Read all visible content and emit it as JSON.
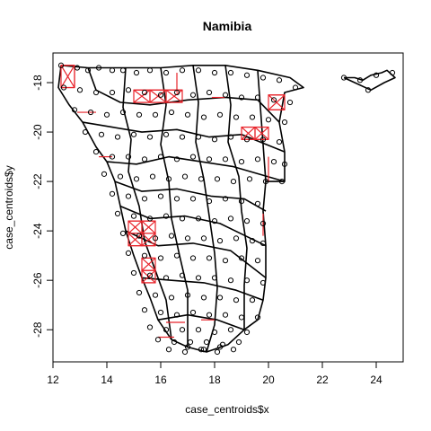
{
  "chart_data": {
    "type": "scatter",
    "title": "Namibia",
    "xlabel": "case_centroids$x",
    "ylabel": "case_centroids$y",
    "xlim": [
      12.0,
      25.0
    ],
    "ylim": [
      -29.3,
      -16.8
    ],
    "xticks": [
      12,
      14,
      16,
      18,
      20,
      22,
      24
    ],
    "yticks": [
      -28,
      -26,
      -24,
      -22,
      -20,
      -18
    ],
    "xtick_labels": [
      "12",
      "14",
      "16",
      "18",
      "20",
      "22",
      "24"
    ],
    "ytick_labels": [
      "-28",
      "-26",
      "-24",
      "-22",
      "-20",
      "-18"
    ],
    "grid": false,
    "colors": {
      "boundaries": "#000000",
      "points": "#000000",
      "highlight_links": "#e8232a"
    },
    "boundaries": [
      [
        [
          12.3,
          -17.3
        ],
        [
          13.3,
          -17.4
        ],
        [
          14.7,
          -17.4
        ],
        [
          16.0,
          -17.4
        ],
        [
          17.2,
          -17.3
        ],
        [
          18.4,
          -17.3
        ],
        [
          19.6,
          -17.5
        ],
        [
          20.8,
          -17.8
        ],
        [
          21.3,
          -18.2
        ],
        [
          20.6,
          -18.4
        ],
        [
          20.4,
          -19.6
        ],
        [
          20.6,
          -20.8
        ],
        [
          20.6,
          -22.0
        ],
        [
          19.9,
          -22.0
        ],
        [
          19.8,
          -23.2
        ],
        [
          19.9,
          -24.6
        ],
        [
          19.9,
          -25.9
        ],
        [
          19.8,
          -26.8
        ],
        [
          19.6,
          -27.6
        ],
        [
          19.1,
          -28.0
        ],
        [
          18.5,
          -28.6
        ],
        [
          17.7,
          -28.9
        ],
        [
          17.0,
          -28.7
        ],
        [
          16.4,
          -28.4
        ],
        [
          15.9,
          -27.6
        ],
        [
          15.6,
          -26.7
        ],
        [
          15.3,
          -25.9
        ],
        [
          15.0,
          -25.0
        ],
        [
          14.7,
          -24.0
        ],
        [
          14.5,
          -23.0
        ],
        [
          14.3,
          -22.0
        ],
        [
          14.0,
          -21.2
        ],
        [
          13.6,
          -20.6
        ],
        [
          13.1,
          -19.6
        ],
        [
          12.6,
          -18.9
        ],
        [
          12.2,
          -18.2
        ],
        [
          12.3,
          -17.3
        ]
      ],
      [
        [
          22.8,
          -17.8
        ],
        [
          23.2,
          -17.8
        ],
        [
          23.5,
          -17.9
        ],
        [
          23.8,
          -17.7
        ],
        [
          24.2,
          -17.6
        ],
        [
          24.4,
          -17.5
        ],
        [
          24.7,
          -17.8
        ],
        [
          24.3,
          -18.0
        ],
        [
          23.8,
          -18.3
        ],
        [
          23.2,
          -18.0
        ],
        [
          22.8,
          -17.8
        ]
      ],
      [
        [
          13.3,
          -17.4
        ],
        [
          13.6,
          -18.3
        ],
        [
          14.5,
          -18.8
        ],
        [
          15.6,
          -18.9
        ],
        [
          17.0,
          -18.7
        ],
        [
          18.4,
          -18.6
        ],
        [
          19.6,
          -18.7
        ],
        [
          20.4,
          -19.6
        ]
      ],
      [
        [
          13.1,
          -19.6
        ],
        [
          14.2,
          -19.8
        ],
        [
          15.3,
          -20.0
        ],
        [
          16.6,
          -19.9
        ],
        [
          17.8,
          -20.2
        ],
        [
          19.0,
          -20.1
        ],
        [
          20.6,
          -20.8
        ]
      ],
      [
        [
          14.0,
          -21.2
        ],
        [
          15.1,
          -21.3
        ],
        [
          16.3,
          -21.0
        ],
        [
          17.5,
          -21.2
        ],
        [
          18.7,
          -21.4
        ],
        [
          20.6,
          -22.0
        ]
      ],
      [
        [
          14.3,
          -22.0
        ],
        [
          15.3,
          -22.4
        ],
        [
          16.6,
          -22.3
        ],
        [
          17.9,
          -22.6
        ],
        [
          19.1,
          -22.7
        ],
        [
          19.9,
          -23.2
        ]
      ],
      [
        [
          14.5,
          -23.0
        ],
        [
          15.6,
          -23.5
        ],
        [
          16.9,
          -23.4
        ],
        [
          18.2,
          -23.7
        ],
        [
          19.9,
          -24.6
        ]
      ],
      [
        [
          14.7,
          -24.0
        ],
        [
          15.9,
          -24.6
        ],
        [
          17.2,
          -24.5
        ],
        [
          18.6,
          -24.8
        ],
        [
          19.9,
          -25.9
        ]
      ],
      [
        [
          15.3,
          -25.9
        ],
        [
          16.4,
          -26.0
        ],
        [
          17.6,
          -26.1
        ],
        [
          18.8,
          -26.4
        ],
        [
          19.8,
          -26.8
        ]
      ],
      [
        [
          15.9,
          -27.6
        ],
        [
          17.0,
          -27.4
        ],
        [
          18.1,
          -27.6
        ],
        [
          19.1,
          -28.0
        ]
      ],
      [
        [
          14.7,
          -17.4
        ],
        [
          14.6,
          -19.0
        ],
        [
          14.9,
          -20.3
        ],
        [
          14.8,
          -21.6
        ],
        [
          15.2,
          -23.0
        ],
        [
          15.4,
          -24.4
        ],
        [
          15.8,
          -25.6
        ],
        [
          16.2,
          -26.8
        ],
        [
          16.4,
          -28.4
        ]
      ],
      [
        [
          16.0,
          -17.4
        ],
        [
          16.2,
          -18.9
        ],
        [
          16.0,
          -20.5
        ],
        [
          16.3,
          -22.0
        ],
        [
          16.4,
          -23.5
        ],
        [
          16.7,
          -25.0
        ],
        [
          17.0,
          -26.4
        ],
        [
          17.0,
          -28.7
        ]
      ],
      [
        [
          17.2,
          -17.3
        ],
        [
          17.4,
          -18.8
        ],
        [
          17.3,
          -20.4
        ],
        [
          17.6,
          -21.9
        ],
        [
          17.8,
          -23.4
        ],
        [
          18.0,
          -24.9
        ],
        [
          18.1,
          -26.3
        ],
        [
          18.0,
          -27.8
        ],
        [
          17.7,
          -28.9
        ]
      ],
      [
        [
          18.4,
          -17.3
        ],
        [
          18.6,
          -18.9
        ],
        [
          18.5,
          -20.4
        ],
        [
          18.9,
          -21.8
        ],
        [
          19.0,
          -23.2
        ],
        [
          19.2,
          -24.7
        ],
        [
          19.1,
          -26.2
        ],
        [
          19.1,
          -28.0
        ]
      ],
      [
        [
          19.6,
          -17.5
        ],
        [
          19.7,
          -19.0
        ],
        [
          19.8,
          -20.5
        ],
        [
          19.9,
          -22.0
        ]
      ]
    ],
    "points_x": [
      12.3,
      12.9,
      13.3,
      13.7,
      14.2,
      14.6,
      15.1,
      15.6,
      16.2,
      16.8,
      17.4,
      18.0,
      18.6,
      19.2,
      19.8,
      20.4,
      21.0,
      12.4,
      13.0,
      13.6,
      14.2,
      14.8,
      15.4,
      16.0,
      16.6,
      17.2,
      17.8,
      18.4,
      19.0,
      19.6,
      20.2,
      20.8,
      12.8,
      13.4,
      14.0,
      14.6,
      15.2,
      15.8,
      16.4,
      17.0,
      17.6,
      18.2,
      18.8,
      19.4,
      20.0,
      20.6,
      13.2,
      13.8,
      14.4,
      15.0,
      15.6,
      16.2,
      16.8,
      17.4,
      18.0,
      18.6,
      19.2,
      19.8,
      20.4,
      13.6,
      14.2,
      14.8,
      15.4,
      16.0,
      16.6,
      17.2,
      17.8,
      18.4,
      19.0,
      19.6,
      20.2,
      20.6,
      13.9,
      14.5,
      15.1,
      15.7,
      16.3,
      16.9,
      17.5,
      18.1,
      18.7,
      19.3,
      19.9,
      20.5,
      14.2,
      14.8,
      15.4,
      16.0,
      16.6,
      17.2,
      17.8,
      18.4,
      19.0,
      19.6,
      14.4,
      15.0,
      15.6,
      16.2,
      16.8,
      17.4,
      18.0,
      18.6,
      19.2,
      19.8,
      14.6,
      15.2,
      15.8,
      16.4,
      17.0,
      17.6,
      18.2,
      18.8,
      19.4,
      19.8,
      14.8,
      15.4,
      16.0,
      16.6,
      17.2,
      17.8,
      18.4,
      19.0,
      19.6,
      15.0,
      15.6,
      16.2,
      16.8,
      17.4,
      18.0,
      18.6,
      19.2,
      19.8,
      15.2,
      15.8,
      16.4,
      17.0,
      17.6,
      18.2,
      18.8,
      19.4,
      15.4,
      16.0,
      16.6,
      17.2,
      17.8,
      18.4,
      19.0,
      19.6,
      15.6,
      16.2,
      16.8,
      17.4,
      18.0,
      18.6,
      19.2,
      15.9,
      16.5,
      17.1,
      17.7,
      18.3,
      18.9,
      16.3,
      16.9,
      17.5,
      18.1,
      18.7,
      17.0,
      17.6,
      18.2,
      22.8,
      23.4,
      24.0,
      24.6,
      23.7
    ],
    "points_y": [
      -17.3,
      -17.4,
      -17.5,
      -17.4,
      -17.5,
      -17.5,
      -17.6,
      -17.5,
      -17.6,
      -17.5,
      -17.5,
      -17.6,
      -17.6,
      -17.7,
      -17.8,
      -17.9,
      -18.2,
      -18.2,
      -18.3,
      -18.4,
      -18.4,
      -18.3,
      -18.4,
      -18.5,
      -18.4,
      -18.5,
      -18.4,
      -18.5,
      -18.6,
      -18.6,
      -18.7,
      -18.8,
      -19.1,
      -19.2,
      -19.3,
      -19.2,
      -19.3,
      -19.3,
      -19.2,
      -19.3,
      -19.4,
      -19.3,
      -19.4,
      -19.4,
      -19.5,
      -19.6,
      -20.0,
      -20.1,
      -20.2,
      -20.1,
      -20.2,
      -20.1,
      -20.2,
      -20.2,
      -20.3,
      -20.2,
      -20.3,
      -20.3,
      -20.4,
      -20.8,
      -21.0,
      -21.0,
      -21.1,
      -21.0,
      -21.1,
      -21.0,
      -21.1,
      -21.1,
      -21.2,
      -21.1,
      -21.2,
      -21.3,
      -21.7,
      -21.8,
      -21.9,
      -21.8,
      -21.9,
      -21.8,
      -21.9,
      -21.9,
      -22.0,
      -21.9,
      -22.0,
      -22.0,
      -22.5,
      -22.6,
      -22.7,
      -22.6,
      -22.7,
      -22.7,
      -22.8,
      -22.7,
      -22.8,
      -22.9,
      -23.3,
      -23.4,
      -23.5,
      -23.4,
      -23.5,
      -23.5,
      -23.6,
      -23.5,
      -23.6,
      -23.7,
      -24.1,
      -24.2,
      -24.3,
      -24.2,
      -24.3,
      -24.3,
      -24.4,
      -24.3,
      -24.4,
      -24.5,
      -24.9,
      -25.0,
      -25.1,
      -25.0,
      -25.1,
      -25.1,
      -25.2,
      -25.1,
      -25.2,
      -25.7,
      -25.8,
      -25.9,
      -25.8,
      -25.9,
      -25.9,
      -26.0,
      -26.0,
      -26.1,
      -26.5,
      -26.6,
      -26.7,
      -26.6,
      -26.7,
      -26.7,
      -26.8,
      -26.8,
      -27.2,
      -27.3,
      -27.4,
      -27.3,
      -27.4,
      -27.4,
      -27.5,
      -27.5,
      -27.9,
      -28.0,
      -28.0,
      -28.0,
      -28.1,
      -28.0,
      -28.1,
      -28.4,
      -28.5,
      -28.5,
      -28.5,
      -28.6,
      -28.5,
      -28.8,
      -28.9,
      -28.8,
      -28.9,
      -28.8,
      -28.7,
      -28.8,
      -28.7,
      -17.8,
      -17.9,
      -17.7,
      -17.6,
      -18.3
    ],
    "highlight_cells": [
      [
        12.3,
        -17.3,
        0.5,
        0.9
      ],
      [
        15.0,
        -18.3,
        0.6,
        0.5
      ],
      [
        15.6,
        -18.3,
        0.6,
        0.5
      ],
      [
        16.2,
        -18.3,
        0.6,
        0.5
      ],
      [
        19.0,
        -19.8,
        0.5,
        0.5
      ],
      [
        19.5,
        -19.8,
        0.5,
        0.5
      ],
      [
        20.0,
        -18.5,
        0.6,
        0.6
      ],
      [
        14.8,
        -23.6,
        0.5,
        0.5
      ],
      [
        14.8,
        -24.1,
        0.5,
        0.5
      ],
      [
        15.3,
        -23.6,
        0.5,
        0.5
      ],
      [
        15.3,
        -24.1,
        0.5,
        0.5
      ],
      [
        15.3,
        -25.1,
        0.5,
        0.5
      ],
      [
        15.3,
        -25.6,
        0.5,
        0.5
      ]
    ],
    "highlight_links": [
      [
        12.3,
        -17.3,
        12.8,
        -17.3
      ],
      [
        12.8,
        -17.3,
        12.8,
        -18.2
      ],
      [
        12.3,
        -18.2,
        12.8,
        -18.2
      ],
      [
        15.0,
        -18.3,
        16.8,
        -18.3
      ],
      [
        15.0,
        -18.8,
        16.8,
        -18.8
      ],
      [
        19.0,
        -19.8,
        20.0,
        -19.8
      ],
      [
        19.0,
        -20.3,
        20.0,
        -20.3
      ],
      [
        20.0,
        -18.5,
        20.6,
        -18.5
      ],
      [
        20.0,
        -19.1,
        20.6,
        -19.1
      ],
      [
        14.8,
        -23.6,
        15.8,
        -23.6
      ],
      [
        14.8,
        -24.6,
        15.8,
        -24.6
      ],
      [
        15.3,
        -25.1,
        15.8,
        -25.1
      ],
      [
        15.3,
        -26.1,
        15.8,
        -26.1
      ],
      [
        16.2,
        -27.7,
        16.9,
        -27.7
      ],
      [
        15.9,
        -28.3,
        16.5,
        -28.3
      ],
      [
        20.0,
        -21.0,
        20.0,
        -22.0
      ],
      [
        16.6,
        -17.6,
        16.6,
        -18.4
      ],
      [
        12.9,
        -19.2,
        13.6,
        -19.2
      ],
      [
        17.9,
        -18.6,
        18.4,
        -18.6
      ],
      [
        19.8,
        -23.3,
        19.8,
        -24.2
      ],
      [
        13.7,
        -21.0,
        14.2,
        -21.0
      ],
      [
        17.5,
        -27.6,
        18.0,
        -27.6
      ]
    ]
  }
}
